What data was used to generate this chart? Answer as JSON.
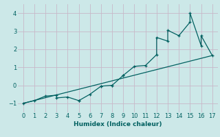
{
  "title": "",
  "xlabel": "Humidex (Indice chaleur)",
  "ylabel": "",
  "xlim": [
    -0.5,
    17.5
  ],
  "ylim": [
    -1.5,
    4.5
  ],
  "xticks": [
    0,
    1,
    2,
    3,
    4,
    5,
    6,
    7,
    8,
    9,
    10,
    11,
    12,
    13,
    14,
    15,
    16,
    17
  ],
  "yticks": [
    -1,
    0,
    1,
    2,
    3,
    4
  ],
  "curve_x": [
    0,
    1,
    2,
    3,
    3,
    4,
    5,
    5,
    6,
    7,
    7,
    8,
    8,
    9,
    9,
    10,
    11,
    12,
    12,
    13,
    13,
    14,
    15,
    15,
    16,
    16,
    17
  ],
  "curve_y": [
    -1.0,
    -0.85,
    -0.6,
    -0.55,
    -0.7,
    -0.65,
    -0.85,
    -0.85,
    -0.5,
    -0.05,
    -0.05,
    0.0,
    0.0,
    0.55,
    0.55,
    1.05,
    1.1,
    1.7,
    2.65,
    2.45,
    3.05,
    2.75,
    3.5,
    4.0,
    2.2,
    2.75,
    1.65
  ],
  "line_x": [
    0,
    17
  ],
  "line_y": [
    -1.0,
    1.65
  ],
  "color": "#006060",
  "bg_color": "#cce8e8",
  "grid_color": "#c8b8c8",
  "marker": "+",
  "markersize": 3.5,
  "linewidth": 0.9
}
